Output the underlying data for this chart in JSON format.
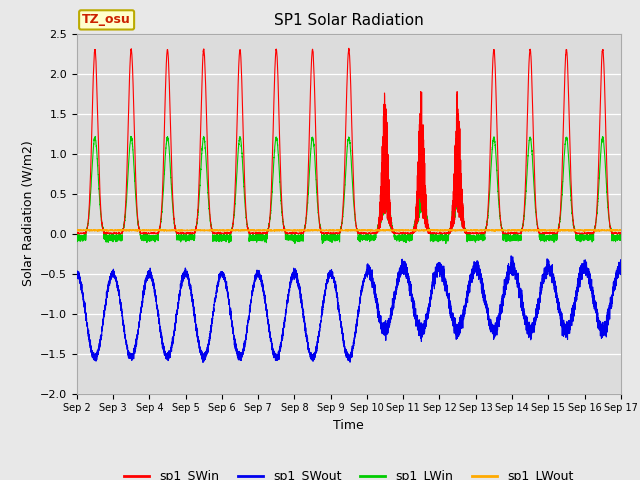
{
  "title": "SP1 Solar Radiation",
  "xlabel": "Time",
  "ylabel": "Solar Radiation (W/m2)",
  "ylim": [
    -2.0,
    2.5
  ],
  "yticks": [
    -2.0,
    -1.5,
    -1.0,
    -0.5,
    0.0,
    0.5,
    1.0,
    1.5,
    2.0,
    2.5
  ],
  "fig_bg_color": "#e8e8e8",
  "plot_bg_color": "#dcdcdc",
  "grid_color": "#ffffff",
  "tz_label": "TZ_osu",
  "tz_box_color": "#ffffcc",
  "tz_text_color": "#cc2200",
  "tz_border_color": "#bbaa00",
  "legend_entries": [
    "sp1_SWin",
    "sp1_SWout",
    "sp1_LWin",
    "sp1_LWout"
  ],
  "legend_colors": [
    "#ff0000",
    "#0000ee",
    "#00cc00",
    "#ffaa00"
  ],
  "line_width": 0.8,
  "x_start_days": 2,
  "x_end_days": 17,
  "num_points": 7200,
  "font_size": 9,
  "title_font_size": 11,
  "xtick_labels": [
    "Sep 2",
    "Sep 3",
    "Sep 4",
    "Sep 5",
    "Sep 6",
    "Sep 7",
    "Sep 8",
    "Sep 9",
    "Sep 10",
    "Sep 11",
    "Sep 12",
    "Sep 13",
    "Sep 14",
    "Sep 15",
    "Sep 16",
    "Sep 17"
  ],
  "xtick_positions": [
    2,
    3,
    4,
    5,
    6,
    7,
    8,
    9,
    10,
    11,
    12,
    13,
    14,
    15,
    16,
    17
  ]
}
